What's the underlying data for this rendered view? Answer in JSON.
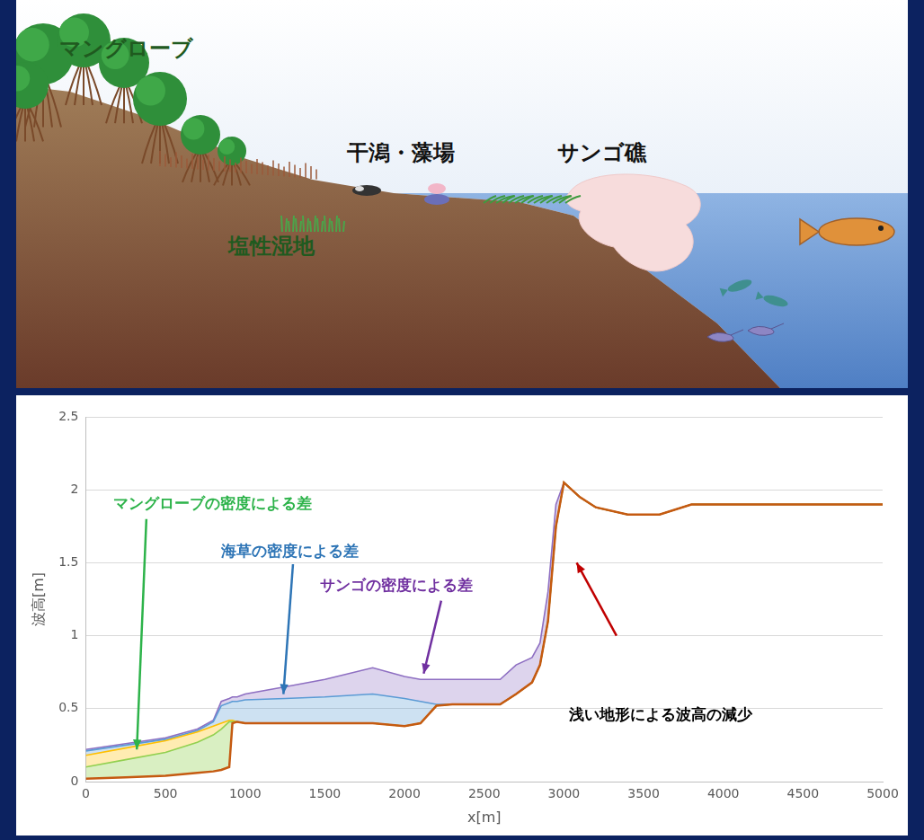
{
  "illustration": {
    "labels": [
      "マングローブ",
      "干潟・藻場",
      "サンゴ礁",
      "塩性湿地"
    ]
  },
  "chart_data": {
    "type": "line",
    "y_label": "波高[m]",
    "x_label": "x[m]",
    "x": [
      0,
      250,
      500,
      700,
      800,
      850,
      900,
      920,
      950,
      1000,
      1250,
      1500,
      1800,
      2000,
      2100,
      2200,
      2300,
      2600,
      2700,
      2800,
      2850,
      2900,
      2950,
      3000,
      3100,
      3200,
      3400,
      3600,
      3800,
      4000,
      4500,
      5000
    ],
    "series": [
      {
        "color": "#c55a11",
        "values": [
          0.02,
          0.03,
          0.04,
          0.06,
          0.07,
          0.08,
          0.1,
          0.4,
          0.41,
          0.4,
          0.4,
          0.4,
          0.4,
          0.38,
          0.4,
          0.52,
          0.53,
          0.53,
          0.6,
          0.68,
          0.8,
          1.1,
          1.75,
          2.05,
          1.95,
          1.88,
          1.83,
          1.83,
          1.9,
          1.9,
          1.9,
          1.9
        ]
      },
      {
        "color": "#92d050",
        "values": [
          0.1,
          0.15,
          0.2,
          0.27,
          0.32,
          0.36,
          0.41,
          0.41,
          0.41,
          0.4,
          0.4,
          0.4,
          0.4,
          0.38,
          0.4,
          0.52,
          0.53,
          0.53,
          0.6,
          0.68,
          0.8,
          1.1,
          1.75,
          2.05,
          1.95,
          1.88,
          1.83,
          1.83,
          1.9,
          1.9,
          1.9,
          1.9
        ]
      },
      {
        "color": "#ffc000",
        "values": [
          0.18,
          0.23,
          0.28,
          0.34,
          0.38,
          0.4,
          0.42,
          0.42,
          0.41,
          0.4,
          0.4,
          0.4,
          0.4,
          0.38,
          0.4,
          0.52,
          0.53,
          0.53,
          0.6,
          0.68,
          0.8,
          1.1,
          1.75,
          2.05,
          1.95,
          1.88,
          1.83,
          1.83,
          1.9,
          1.9,
          1.9,
          1.9
        ]
      },
      {
        "color": "#5b9bd5",
        "values": [
          0.21,
          0.25,
          0.29,
          0.35,
          0.41,
          0.52,
          0.54,
          0.55,
          0.55,
          0.56,
          0.57,
          0.58,
          0.6,
          0.57,
          0.55,
          0.53,
          0.53,
          0.53,
          0.6,
          0.68,
          0.8,
          1.1,
          1.75,
          2.05,
          1.95,
          1.88,
          1.83,
          1.83,
          1.9,
          1.9,
          1.9,
          1.9
        ]
      },
      {
        "color": "#8e6fc2",
        "values": [
          0.22,
          0.26,
          0.3,
          0.36,
          0.42,
          0.55,
          0.57,
          0.58,
          0.58,
          0.6,
          0.65,
          0.7,
          0.78,
          0.72,
          0.7,
          0.7,
          0.7,
          0.7,
          0.8,
          0.85,
          0.95,
          1.3,
          1.9,
          2.05,
          1.95,
          1.88,
          1.83,
          1.83,
          1.9,
          1.9,
          1.9,
          1.9
        ]
      }
    ],
    "xlim": [
      0,
      5000
    ],
    "xticks": [
      0,
      500,
      1000,
      1500,
      2000,
      2500,
      3000,
      3500,
      4000,
      4500,
      5000
    ],
    "ylim": [
      0,
      2.5
    ],
    "yticks": [
      0,
      0.5,
      1,
      1.5,
      2,
      2.5
    ],
    "grid": "y",
    "annotations": [
      {
        "text": "マングローブの密度による差",
        "color": "#2db34a"
      },
      {
        "text": "海草の密度による差",
        "color": "#2e75b6"
      },
      {
        "text": "サンゴの密度による差",
        "color": "#7030a0"
      },
      {
        "text": "浅い地形による波高の減少",
        "color": "#000000"
      }
    ]
  }
}
